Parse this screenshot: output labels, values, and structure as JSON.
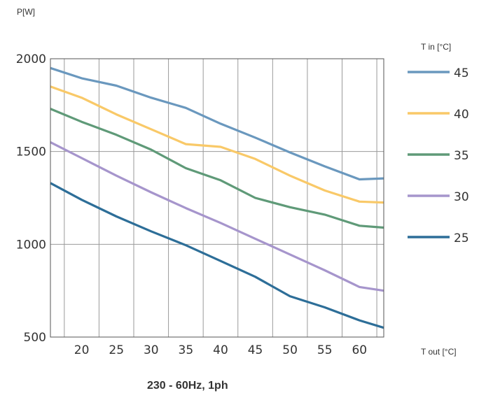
{
  "chart_data": {
    "type": "line",
    "ylabel": "P[W]",
    "xlabel": "T out [°C]",
    "legend_title": "T in [°C]",
    "legend_position": "right",
    "caption": "230 - 60Hz, 1ph",
    "xlim": [
      15.5,
      63.5
    ],
    "ylim": [
      500,
      2000
    ],
    "xticks": [
      20,
      25,
      30,
      35,
      40,
      45,
      50,
      55,
      60
    ],
    "yticks": [
      500,
      1000,
      1500,
      2000
    ],
    "grid": true,
    "series": [
      {
        "name": "45",
        "color": "#6a98be",
        "x": [
          15.5,
          20,
          25,
          30,
          35,
          40,
          45,
          50,
          55,
          60,
          63.5
        ],
        "y": [
          1950,
          1895,
          1855,
          1790,
          1735,
          1650,
          1575,
          1495,
          1420,
          1350,
          1355
        ]
      },
      {
        "name": "40",
        "color": "#f9c968",
        "x": [
          15.5,
          20,
          25,
          30,
          35,
          40,
          45,
          50,
          55,
          60,
          63.5
        ],
        "y": [
          1850,
          1790,
          1700,
          1620,
          1540,
          1525,
          1460,
          1370,
          1290,
          1230,
          1225
        ]
      },
      {
        "name": "35",
        "color": "#5f9a78",
        "x": [
          15.5,
          20,
          25,
          30,
          35,
          40,
          45,
          50,
          55,
          60,
          63.5
        ],
        "y": [
          1730,
          1660,
          1590,
          1510,
          1410,
          1345,
          1250,
          1200,
          1160,
          1100,
          1090
        ]
      },
      {
        "name": "30",
        "color": "#a695cc",
        "x": [
          15.5,
          20,
          25,
          30,
          35,
          40,
          45,
          50,
          55,
          60,
          63.5
        ],
        "y": [
          1550,
          1465,
          1370,
          1280,
          1195,
          1115,
          1030,
          945,
          860,
          770,
          750
        ]
      },
      {
        "name": "25",
        "color": "#2d6e98",
        "x": [
          15.5,
          20,
          25,
          30,
          35,
          40,
          45,
          50,
          55,
          60,
          63.5
        ],
        "y": [
          1330,
          1240,
          1150,
          1070,
          995,
          910,
          825,
          720,
          660,
          590,
          550
        ]
      }
    ]
  }
}
